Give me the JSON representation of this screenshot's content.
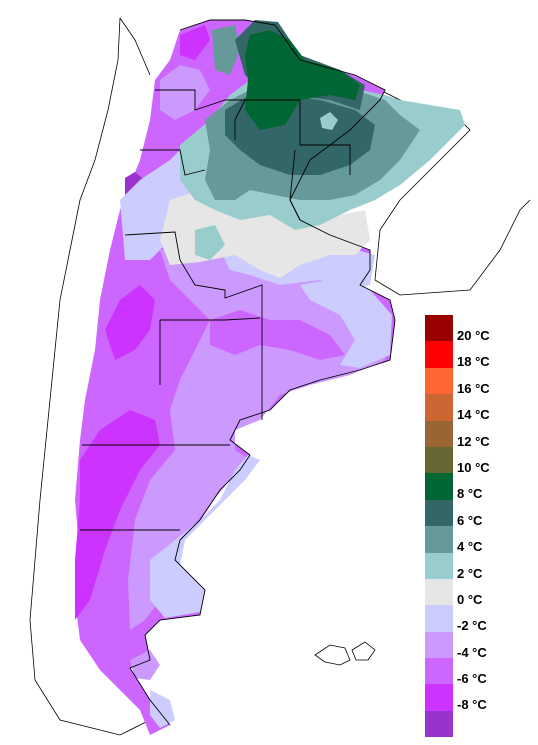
{
  "legend": {
    "items": [
      {
        "label": "20 °C",
        "color": "#990000"
      },
      {
        "label": "18 °C",
        "color": "#ff0000"
      },
      {
        "label": "16 °C",
        "color": "#ff6633"
      },
      {
        "label": "14 °C",
        "color": "#cc6633"
      },
      {
        "label": "12 °C",
        "color": "#996633"
      },
      {
        "label": "10 °C",
        "color": "#666633"
      },
      {
        "label": "8 °C",
        "color": "#006633"
      },
      {
        "label": "6 °C",
        "color": "#336666"
      },
      {
        "label": "4 °C",
        "color": "#669999"
      },
      {
        "label": "2 °C",
        "color": "#99cccc"
      },
      {
        "label": "0 °C",
        "color": "#e6e6e6"
      },
      {
        "label": "-2 °C",
        "color": "#ccccff"
      },
      {
        "label": "-4 °C",
        "color": "#cc99ff"
      },
      {
        "label": "-6 °C",
        "color": "#cc66ff"
      },
      {
        "label": "-8 °C",
        "color": "#cc33ff"
      },
      {
        "label": "",
        "color": "#9933cc"
      }
    ]
  }
}
